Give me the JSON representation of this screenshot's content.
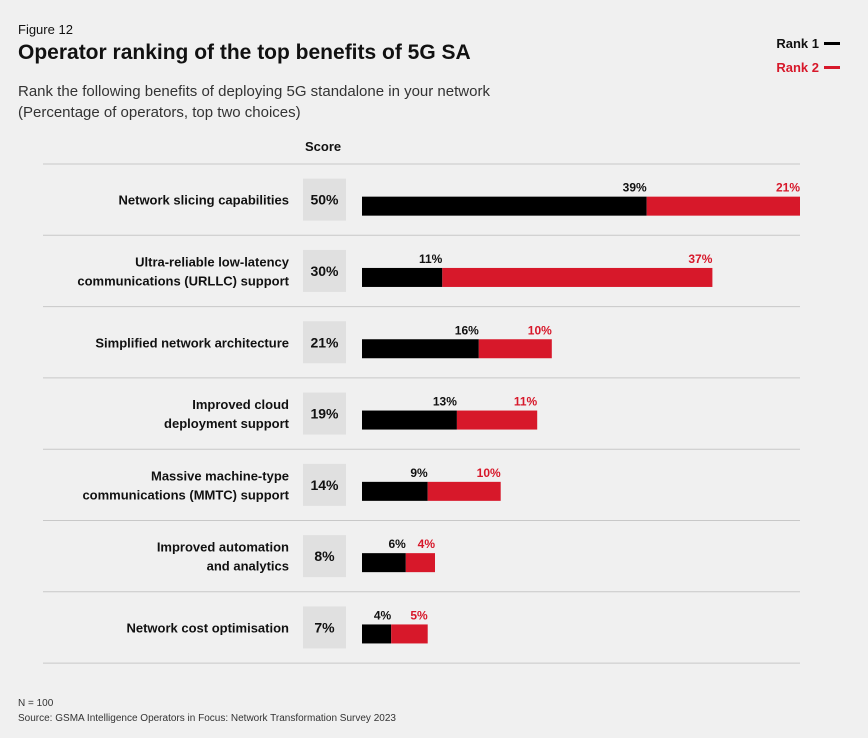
{
  "figure_label": "Figure 12",
  "title": "Operator ranking of the top benefits of 5G SA",
  "subtitle_line1": "Rank the following benefits of deploying 5G standalone in your network",
  "subtitle_line2": "(Percentage of operators, top two choices)",
  "score_header": "Score",
  "footnote_n": "N = 100",
  "source": "Source: GSMA Intelligence Operators in Focus: Network Transformation Survey 2023",
  "colors": {
    "rank1": "#000000",
    "rank2": "#d7182a",
    "score_bg": "#e0e0e0",
    "divider": "#c8c8c8"
  },
  "chart_data": {
    "type": "bar",
    "orientation": "horizontal",
    "stacked": true,
    "legend_position": "top-right",
    "categories": [
      [
        "Network slicing capabilities"
      ],
      [
        "Ultra-reliable low-latency",
        "communications (URLLC) support"
      ],
      [
        "Simplified network architecture"
      ],
      [
        "Improved cloud",
        "deployment support"
      ],
      [
        "Massive machine-type",
        "communications (MMTC) support"
      ],
      [
        "Improved automation",
        "and analytics"
      ],
      [
        "Network cost optimisation"
      ]
    ],
    "scores": [
      "50%",
      "30%",
      "21%",
      "19%",
      "14%",
      "8%",
      "7%"
    ],
    "series": [
      {
        "name": "Rank 1",
        "values": [
          39,
          11,
          16,
          13,
          9,
          6,
          4
        ],
        "labels": [
          "39%",
          "11%",
          "16%",
          "13%",
          "9%",
          "6%",
          "4%"
        ]
      },
      {
        "name": "Rank 2",
        "values": [
          21,
          37,
          10,
          11,
          10,
          4,
          5
        ],
        "labels": [
          "21%",
          "37%",
          "10%",
          "11%",
          "10%",
          "4%",
          "5%"
        ]
      }
    ],
    "xlim": [
      0,
      60
    ]
  }
}
